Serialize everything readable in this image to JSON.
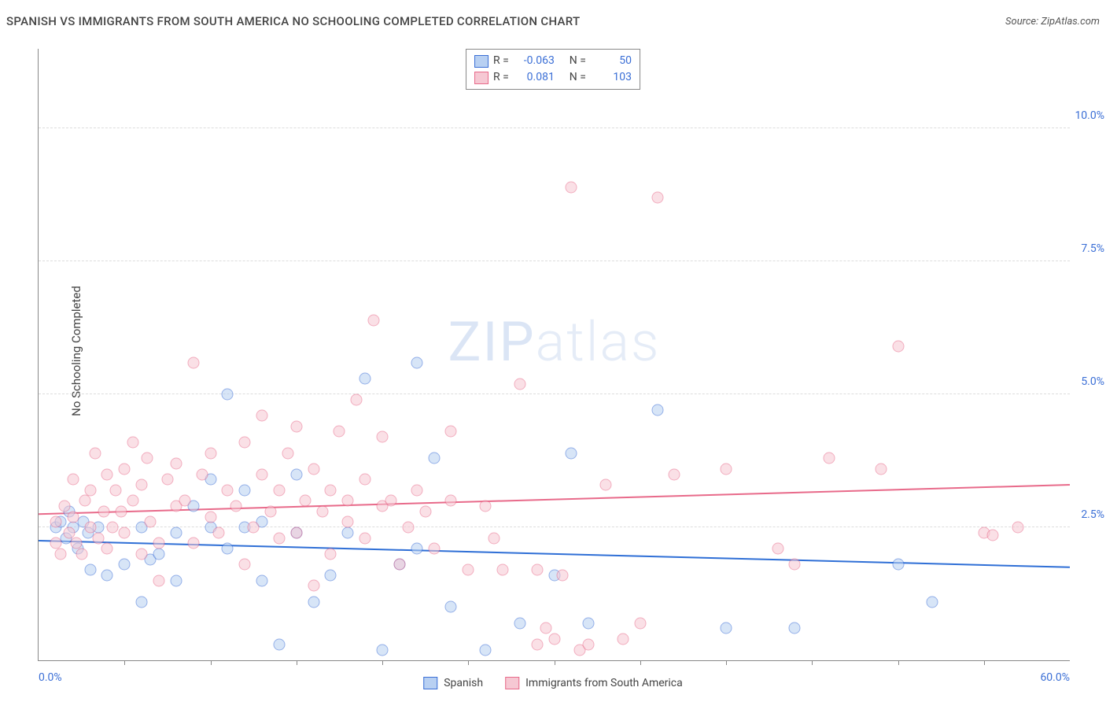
{
  "title": "SPANISH VS IMMIGRANTS FROM SOUTH AMERICA NO SCHOOLING COMPLETED CORRELATION CHART",
  "source": "Source: ZipAtlas.com",
  "y_axis_title": "No Schooling Completed",
  "watermark": "ZIPatlas",
  "chart": {
    "type": "scatter",
    "xlim": [
      0,
      60
    ],
    "ylim": [
      0,
      11.5
    ],
    "x_min_label": "0.0%",
    "x_max_label": "60.0%",
    "y_ticks": [
      2.5,
      5.0,
      7.5,
      10.0
    ],
    "y_tick_labels": [
      "2.5%",
      "5.0%",
      "7.5%",
      "10.0%"
    ],
    "x_minor_ticks": [
      5,
      10,
      15,
      20,
      25,
      30,
      35,
      40,
      45,
      50,
      55
    ],
    "background_color": "#ffffff",
    "grid_color": "#dddddd",
    "marker_size": 15,
    "series": [
      {
        "key": "spanish",
        "label": "Spanish",
        "fill": "#b8d0f2",
        "stroke": "#3b6fd6",
        "fill_opacity": 0.55,
        "R": "-0.063",
        "N": "50",
        "trend": {
          "y_at_x0": 2.25,
          "y_at_x60": 1.75,
          "color": "#2f6fd6",
          "width": 2
        },
        "points": [
          [
            1,
            2.5
          ],
          [
            1.3,
            2.6
          ],
          [
            1.6,
            2.3
          ],
          [
            1.8,
            2.8
          ],
          [
            2,
            2.5
          ],
          [
            2.3,
            2.1
          ],
          [
            2.6,
            2.6
          ],
          [
            2.9,
            2.4
          ],
          [
            3,
            1.7
          ],
          [
            3.5,
            2.5
          ],
          [
            4,
            1.6
          ],
          [
            5,
            1.8
          ],
          [
            6,
            1.1
          ],
          [
            6,
            2.5
          ],
          [
            6.5,
            1.9
          ],
          [
            7,
            2.0
          ],
          [
            8,
            1.5
          ],
          [
            8,
            2.4
          ],
          [
            9,
            2.9
          ],
          [
            10,
            2.5
          ],
          [
            10,
            3.4
          ],
          [
            11,
            5.0
          ],
          [
            11,
            2.1
          ],
          [
            12,
            2.5
          ],
          [
            12,
            3.2
          ],
          [
            13,
            1.5
          ],
          [
            13,
            2.6
          ],
          [
            14,
            0.3
          ],
          [
            15,
            2.4
          ],
          [
            15,
            3.5
          ],
          [
            16,
            1.1
          ],
          [
            17,
            1.6
          ],
          [
            18,
            2.4
          ],
          [
            19,
            5.3
          ],
          [
            20,
            0.2
          ],
          [
            21,
            1.8
          ],
          [
            22,
            2.1
          ],
          [
            22,
            5.6
          ],
          [
            23,
            3.8
          ],
          [
            24,
            1.0
          ],
          [
            26,
            0.2
          ],
          [
            28,
            0.7
          ],
          [
            30,
            1.6
          ],
          [
            31,
            3.9
          ],
          [
            32,
            0.7
          ],
          [
            36,
            4.7
          ],
          [
            40,
            0.6
          ],
          [
            44,
            0.6
          ],
          [
            50,
            1.8
          ],
          [
            52,
            1.1
          ]
        ]
      },
      {
        "key": "immigrants",
        "label": "Immigrants from South America",
        "fill": "#f6c8d3",
        "stroke": "#e86a8a",
        "fill_opacity": 0.55,
        "R": "0.081",
        "N": "103",
        "trend": {
          "y_at_x0": 2.75,
          "y_at_x60": 3.3,
          "color": "#e86a8a",
          "width": 2
        },
        "points": [
          [
            1,
            2.2
          ],
          [
            1,
            2.6
          ],
          [
            1.3,
            2.0
          ],
          [
            1.5,
            2.9
          ],
          [
            1.8,
            2.4
          ],
          [
            2,
            2.7
          ],
          [
            2,
            3.4
          ],
          [
            2.2,
            2.2
          ],
          [
            2.5,
            2.0
          ],
          [
            2.7,
            3.0
          ],
          [
            3,
            3.2
          ],
          [
            3,
            2.5
          ],
          [
            3.3,
            3.9
          ],
          [
            3.5,
            2.3
          ],
          [
            3.8,
            2.8
          ],
          [
            4,
            3.5
          ],
          [
            4,
            2.1
          ],
          [
            4.3,
            2.5
          ],
          [
            4.5,
            3.2
          ],
          [
            4.8,
            2.8
          ],
          [
            5,
            3.6
          ],
          [
            5,
            2.4
          ],
          [
            5.5,
            3.0
          ],
          [
            5.5,
            4.1
          ],
          [
            6,
            2.0
          ],
          [
            6,
            3.3
          ],
          [
            6.3,
            3.8
          ],
          [
            6.5,
            2.6
          ],
          [
            7,
            2.2
          ],
          [
            7,
            1.5
          ],
          [
            7.5,
            3.4
          ],
          [
            8,
            2.9
          ],
          [
            8,
            3.7
          ],
          [
            8.5,
            3.0
          ],
          [
            9,
            2.2
          ],
          [
            9,
            5.6
          ],
          [
            9.5,
            3.5
          ],
          [
            10,
            2.7
          ],
          [
            10,
            3.9
          ],
          [
            10.5,
            2.4
          ],
          [
            11,
            3.2
          ],
          [
            11.5,
            2.9
          ],
          [
            12,
            1.8
          ],
          [
            12,
            4.1
          ],
          [
            12.5,
            2.5
          ],
          [
            13,
            3.5
          ],
          [
            13,
            4.6
          ],
          [
            13.5,
            2.8
          ],
          [
            14,
            2.3
          ],
          [
            14,
            3.2
          ],
          [
            14.5,
            3.9
          ],
          [
            15,
            2.4
          ],
          [
            15,
            4.4
          ],
          [
            15.5,
            3.0
          ],
          [
            16,
            1.4
          ],
          [
            16,
            3.6
          ],
          [
            16.5,
            2.8
          ],
          [
            17,
            3.2
          ],
          [
            17,
            2.0
          ],
          [
            17.5,
            4.3
          ],
          [
            18,
            3.0
          ],
          [
            18,
            2.6
          ],
          [
            18.5,
            4.9
          ],
          [
            19,
            2.3
          ],
          [
            19,
            3.4
          ],
          [
            19.5,
            6.4
          ],
          [
            20,
            2.9
          ],
          [
            20,
            4.2
          ],
          [
            20.5,
            3.0
          ],
          [
            21,
            1.8
          ],
          [
            21.5,
            2.5
          ],
          [
            22,
            3.2
          ],
          [
            22.5,
            2.8
          ],
          [
            23,
            2.1
          ],
          [
            24,
            3.0
          ],
          [
            24,
            4.3
          ],
          [
            25,
            1.7
          ],
          [
            26,
            2.9
          ],
          [
            26.5,
            2.3
          ],
          [
            27,
            1.7
          ],
          [
            28,
            5.2
          ],
          [
            29,
            1.7
          ],
          [
            29,
            0.3
          ],
          [
            29.5,
            0.6
          ],
          [
            30,
            0.4
          ],
          [
            30.5,
            1.6
          ],
          [
            31,
            8.9
          ],
          [
            31.5,
            0.2
          ],
          [
            32,
            0.3
          ],
          [
            33,
            3.3
          ],
          [
            34,
            0.4
          ],
          [
            35,
            0.7
          ],
          [
            36,
            8.7
          ],
          [
            37,
            3.5
          ],
          [
            40,
            3.6
          ],
          [
            43,
            2.1
          ],
          [
            46,
            3.8
          ],
          [
            49,
            3.6
          ],
          [
            50,
            5.9
          ],
          [
            55,
            2.4
          ],
          [
            55.5,
            2.35
          ],
          [
            57,
            2.5
          ],
          [
            44,
            1.8
          ]
        ]
      }
    ]
  },
  "stats_box": {
    "rows": [
      {
        "series": "spanish",
        "R_label": "R =",
        "N_label": "N ="
      },
      {
        "series": "immigrants",
        "R_label": "R =",
        "N_label": "N ="
      }
    ]
  }
}
